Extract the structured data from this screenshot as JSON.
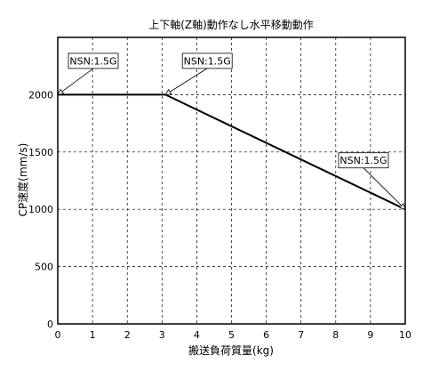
{
  "chart_data": {
    "type": "line",
    "title": "上下軸(Z軸)動作なし水平移動動作",
    "xlabel": "搬送負荷質量(kg)",
    "ylabel": "CP速度(mm/s)",
    "xlim": [
      0,
      10
    ],
    "ylim": [
      0,
      2500
    ],
    "x_ticks": [
      0,
      1,
      2,
      3,
      4,
      5,
      6,
      7,
      8,
      9,
      10
    ],
    "y_ticks": [
      0,
      500,
      1000,
      1500,
      2000
    ],
    "grid": true,
    "series": [
      {
        "x": [
          0,
          3.1,
          10
        ],
        "y": [
          2000,
          2000,
          1000
        ]
      }
    ],
    "annotations": [
      {
        "text": "NSN:1.5G",
        "x": 0,
        "y": 2000
      },
      {
        "text": "NSN:1.5G",
        "x": 3.1,
        "y": 2000
      },
      {
        "text": "NSN:1.5G",
        "x": 10,
        "y": 1000
      }
    ],
    "colors": {
      "line": "#000000",
      "grid": "#000000",
      "background": "#ffffff"
    }
  }
}
